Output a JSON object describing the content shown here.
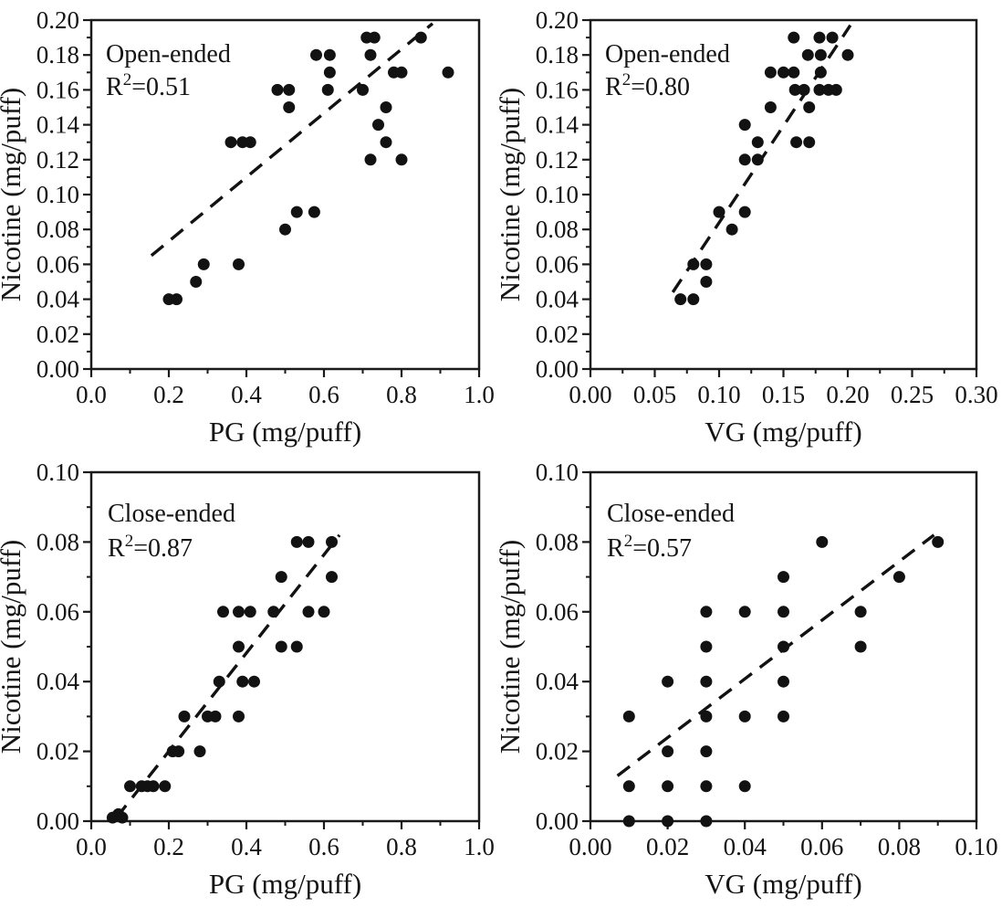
{
  "figure": {
    "description": "Scatter plots of nicotine yield versus PG and VG yields for open-ended and close-ended devices",
    "rows": 2,
    "cols": 2
  },
  "style": {
    "background": "#ffffff",
    "marker_color": "#121212",
    "axis_color": "#1a1a1a",
    "text_color": "#141414",
    "trend_dash": [
      17,
      11
    ],
    "marker_radius": 6.5
  },
  "chart_data": [
    {
      "id": "open-pg",
      "type": "scatter",
      "annotation": {
        "device": "Open-ended",
        "r2_base": "R",
        "r2_sup": "2",
        "r2_rest": "=0.51"
      },
      "xlabel": "PG (mg/puff)",
      "ylabel": "Nicotine (mg/puff)",
      "xlim": [
        0.0,
        1.0
      ],
      "ylim": [
        0.0,
        0.2
      ],
      "x_major": {
        "values": [
          0.0,
          0.2,
          0.4,
          0.6,
          0.8,
          1.0
        ],
        "labels": [
          "0.0",
          "0.2",
          "0.4",
          "0.6",
          "0.8",
          "1.0"
        ]
      },
      "y_major": {
        "values": [
          0.0,
          0.02,
          0.04,
          0.06,
          0.08,
          0.1,
          0.12,
          0.14,
          0.16,
          0.18,
          0.2
        ],
        "labels": [
          "0.00",
          "0.02",
          "0.04",
          "0.06",
          "0.08",
          "0.10",
          "0.12",
          "0.14",
          "0.16",
          "0.18",
          "0.20"
        ]
      },
      "grid": false,
      "points": [
        [
          0.2,
          0.04
        ],
        [
          0.22,
          0.04
        ],
        [
          0.27,
          0.05
        ],
        [
          0.29,
          0.06
        ],
        [
          0.38,
          0.06
        ],
        [
          0.5,
          0.08
        ],
        [
          0.53,
          0.09
        ],
        [
          0.575,
          0.09
        ],
        [
          0.36,
          0.13
        ],
        [
          0.39,
          0.13
        ],
        [
          0.41,
          0.13
        ],
        [
          0.48,
          0.16
        ],
        [
          0.51,
          0.16
        ],
        [
          0.51,
          0.15
        ],
        [
          0.58,
          0.18
        ],
        [
          0.615,
          0.18
        ],
        [
          0.615,
          0.17
        ],
        [
          0.61,
          0.16
        ],
        [
          0.7,
          0.16
        ],
        [
          0.72,
          0.18
        ],
        [
          0.71,
          0.19
        ],
        [
          0.73,
          0.19
        ],
        [
          0.85,
          0.19
        ],
        [
          0.76,
          0.15
        ],
        [
          0.74,
          0.14
        ],
        [
          0.76,
          0.13
        ],
        [
          0.72,
          0.12
        ],
        [
          0.8,
          0.12
        ],
        [
          0.78,
          0.17
        ],
        [
          0.8,
          0.17
        ],
        [
          0.92,
          0.17
        ]
      ],
      "trendline": {
        "style": "dashed",
        "x1": 0.155,
        "y1": 0.065,
        "x2": 0.88,
        "y2": 0.198
      }
    },
    {
      "id": "open-vg",
      "type": "scatter",
      "annotation": {
        "device": "Open-ended",
        "r2_base": "R",
        "r2_sup": "2",
        "r2_rest": "=0.80"
      },
      "xlabel": "VG (mg/puff)",
      "ylabel": "Nicotine (mg/puff)",
      "xlim": [
        0.0,
        0.3
      ],
      "ylim": [
        0.0,
        0.2
      ],
      "x_major": {
        "values": [
          0.0,
          0.05,
          0.1,
          0.15,
          0.2,
          0.25,
          0.3
        ],
        "labels": [
          "0.00",
          "0.05",
          "0.10",
          "0.15",
          "0.20",
          "0.25",
          "0.30"
        ]
      },
      "y_major": {
        "values": [
          0.0,
          0.02,
          0.04,
          0.06,
          0.08,
          0.1,
          0.12,
          0.14,
          0.16,
          0.18,
          0.2
        ],
        "labels": [
          "0.00",
          "0.02",
          "0.04",
          "0.06",
          "0.08",
          "0.10",
          "0.12",
          "0.14",
          "0.16",
          "0.18",
          "0.20"
        ]
      },
      "grid": false,
      "points": [
        [
          0.07,
          0.04
        ],
        [
          0.08,
          0.04
        ],
        [
          0.09,
          0.05
        ],
        [
          0.08,
          0.06
        ],
        [
          0.09,
          0.06
        ],
        [
          0.1,
          0.09
        ],
        [
          0.12,
          0.09
        ],
        [
          0.11,
          0.08
        ],
        [
          0.12,
          0.12
        ],
        [
          0.13,
          0.12
        ],
        [
          0.12,
          0.14
        ],
        [
          0.13,
          0.13
        ],
        [
          0.16,
          0.13
        ],
        [
          0.17,
          0.13
        ],
        [
          0.14,
          0.15
        ],
        [
          0.17,
          0.15
        ],
        [
          0.14,
          0.17
        ],
        [
          0.15,
          0.17
        ],
        [
          0.158,
          0.17
        ],
        [
          0.179,
          0.17
        ],
        [
          0.159,
          0.16
        ],
        [
          0.166,
          0.16
        ],
        [
          0.178,
          0.16
        ],
        [
          0.185,
          0.16
        ],
        [
          0.191,
          0.16
        ],
        [
          0.169,
          0.18
        ],
        [
          0.179,
          0.18
        ],
        [
          0.2,
          0.18
        ],
        [
          0.158,
          0.19
        ],
        [
          0.178,
          0.19
        ],
        [
          0.188,
          0.19
        ]
      ],
      "trendline": {
        "style": "dashed",
        "x1": 0.064,
        "y1": 0.044,
        "x2": 0.202,
        "y2": 0.197
      }
    },
    {
      "id": "close-pg",
      "type": "scatter",
      "annotation": {
        "device": "Close-ended",
        "r2_base": "R",
        "r2_sup": "2",
        "r2_rest": "=0.87"
      },
      "xlabel": "PG (mg/puff)",
      "ylabel": "Nicotine (mg/puff)",
      "xlim": [
        0.0,
        1.0
      ],
      "ylim": [
        0.0,
        0.1
      ],
      "x_major": {
        "values": [
          0.0,
          0.2,
          0.4,
          0.6,
          0.8,
          1.0
        ],
        "labels": [
          "0.0",
          "0.2",
          "0.4",
          "0.6",
          "0.8",
          "1.0"
        ]
      },
      "y_major": {
        "values": [
          0.0,
          0.02,
          0.04,
          0.06,
          0.08,
          0.1
        ],
        "labels": [
          "0.00",
          "0.02",
          "0.04",
          "0.06",
          "0.08",
          "0.10"
        ]
      },
      "grid": false,
      "points": [
        [
          0.055,
          0.001
        ],
        [
          0.07,
          0.002
        ],
        [
          0.08,
          0.001
        ],
        [
          0.1,
          0.01
        ],
        [
          0.13,
          0.01
        ],
        [
          0.145,
          0.01
        ],
        [
          0.16,
          0.01
        ],
        [
          0.19,
          0.01
        ],
        [
          0.21,
          0.02
        ],
        [
          0.225,
          0.02
        ],
        [
          0.28,
          0.02
        ],
        [
          0.24,
          0.03
        ],
        [
          0.3,
          0.03
        ],
        [
          0.32,
          0.03
        ],
        [
          0.38,
          0.03
        ],
        [
          0.33,
          0.04
        ],
        [
          0.39,
          0.04
        ],
        [
          0.42,
          0.04
        ],
        [
          0.38,
          0.05
        ],
        [
          0.49,
          0.05
        ],
        [
          0.53,
          0.05
        ],
        [
          0.34,
          0.06
        ],
        [
          0.38,
          0.06
        ],
        [
          0.41,
          0.06
        ],
        [
          0.47,
          0.06
        ],
        [
          0.56,
          0.06
        ],
        [
          0.6,
          0.06
        ],
        [
          0.49,
          0.07
        ],
        [
          0.62,
          0.07
        ],
        [
          0.53,
          0.08
        ],
        [
          0.56,
          0.08
        ],
        [
          0.62,
          0.08
        ]
      ],
      "trendline": {
        "style": "dashed",
        "x1": 0.065,
        "y1": 0.001,
        "x2": 0.64,
        "y2": 0.082
      }
    },
    {
      "id": "close-vg",
      "type": "scatter",
      "annotation": {
        "device": "Close-ended",
        "r2_base": "R",
        "r2_sup": "2",
        "r2_rest": "=0.57"
      },
      "xlabel": "VG (mg/puff)",
      "ylabel": "Nicotine (mg/puff)",
      "xlim": [
        0.0,
        0.1
      ],
      "ylim": [
        0.0,
        0.1
      ],
      "x_major": {
        "values": [
          0.0,
          0.02,
          0.04,
          0.06,
          0.08,
          0.1
        ],
        "labels": [
          "0.00",
          "0.02",
          "0.04",
          "0.06",
          "0.08",
          "0.10"
        ]
      },
      "y_major": {
        "values": [
          0.0,
          0.02,
          0.04,
          0.06,
          0.08,
          0.1
        ],
        "labels": [
          "0.00",
          "0.02",
          "0.04",
          "0.06",
          "0.08",
          "0.10"
        ]
      },
      "grid": false,
      "points": [
        [
          0.01,
          0.0
        ],
        [
          0.02,
          0.0
        ],
        [
          0.03,
          0.0
        ],
        [
          0.01,
          0.01
        ],
        [
          0.02,
          0.01
        ],
        [
          0.03,
          0.01
        ],
        [
          0.04,
          0.01
        ],
        [
          0.02,
          0.02
        ],
        [
          0.03,
          0.02
        ],
        [
          0.01,
          0.03
        ],
        [
          0.03,
          0.03
        ],
        [
          0.04,
          0.03
        ],
        [
          0.05,
          0.03
        ],
        [
          0.02,
          0.04
        ],
        [
          0.03,
          0.04
        ],
        [
          0.05,
          0.04
        ],
        [
          0.03,
          0.05
        ],
        [
          0.05,
          0.05
        ],
        [
          0.07,
          0.05
        ],
        [
          0.03,
          0.06
        ],
        [
          0.04,
          0.06
        ],
        [
          0.05,
          0.06
        ],
        [
          0.07,
          0.06
        ],
        [
          0.05,
          0.07
        ],
        [
          0.08,
          0.07
        ],
        [
          0.06,
          0.08
        ],
        [
          0.09,
          0.08
        ]
      ],
      "trendline": {
        "style": "dashed",
        "x1": 0.007,
        "y1": 0.013,
        "x2": 0.089,
        "y2": 0.082
      }
    }
  ]
}
